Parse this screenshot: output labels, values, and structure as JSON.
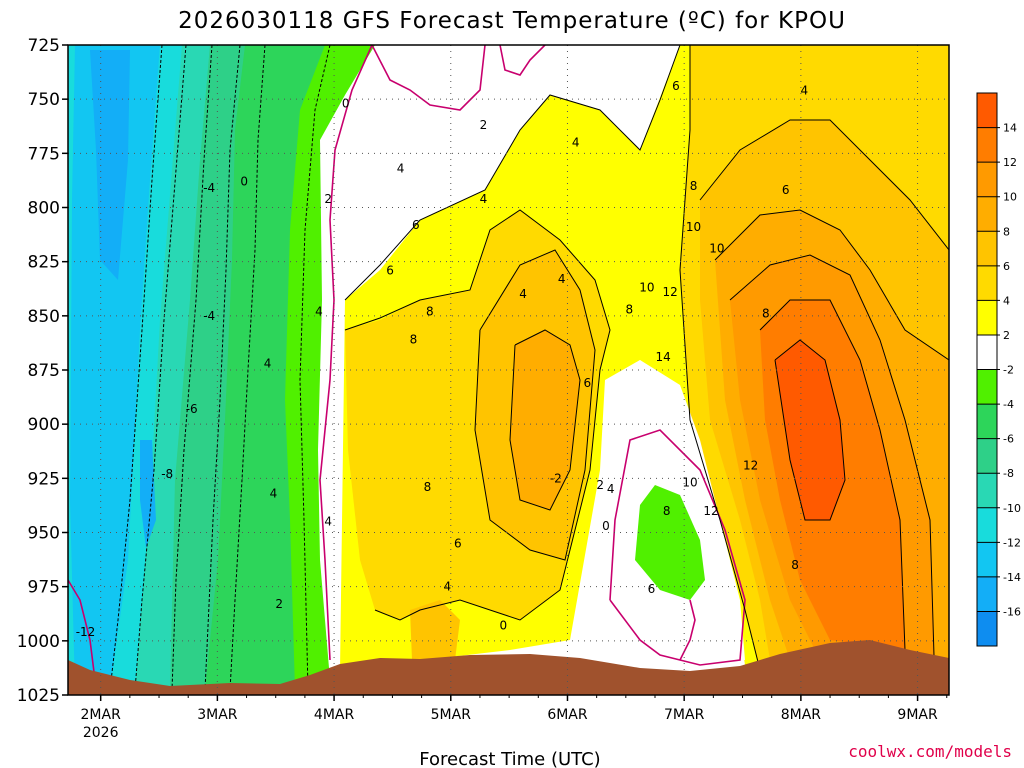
{
  "chart_data": {
    "type": "heatmap",
    "title": "2026030118 GFS Forecast Temperature (ºC) for KPOU",
    "xlabel": "Forecast Time (UTC)",
    "ylabel": "",
    "credit": "coolwx.com/models",
    "y_ticks": [
      "725",
      "750",
      "775",
      "800",
      "825",
      "850",
      "875",
      "900",
      "925",
      "950",
      "975",
      "1000",
      "1025"
    ],
    "x_ticks": [
      {
        "label": "2MAR",
        "sub": "2026"
      },
      {
        "label": "3MAR",
        "sub": ""
      },
      {
        "label": "4MAR",
        "sub": ""
      },
      {
        "label": "5MAR",
        "sub": ""
      },
      {
        "label": "6MAR",
        "sub": ""
      },
      {
        "label": "7MAR",
        "sub": ""
      },
      {
        "label": "8MAR",
        "sub": ""
      },
      {
        "label": "9MAR",
        "sub": ""
      }
    ],
    "ylim": [
      725,
      1025
    ],
    "colorbar": {
      "labels": [
        "14",
        "12",
        "10",
        "8",
        "6",
        "4",
        "2",
        "-2",
        "-4",
        "-6",
        "-8",
        "-10",
        "-12",
        "-14",
        "-16"
      ],
      "colors": [
        "#ff5a00",
        "#ff7d00",
        "#ff9a00",
        "#ffad00",
        "#ffc400",
        "#ffda00",
        "#ffff00",
        "#ffffff",
        "#50f000",
        "#2dd55a",
        "#2ed088",
        "#29d8b4",
        "#18dcdc",
        "#12c6f2",
        "#13aef7",
        "#0e8df0"
      ]
    },
    "contour_labels": [
      {
        "text": "0",
        "day": 3.23,
        "p": 788
      },
      {
        "text": "-4",
        "day": 2.93,
        "p": 791
      },
      {
        "text": "-4",
        "day": 2.93,
        "p": 850
      },
      {
        "text": "-6",
        "day": 2.78,
        "p": 893
      },
      {
        "text": "-8",
        "day": 2.57,
        "p": 923
      },
      {
        "text": "-12",
        "day": 1.87,
        "p": 996
      },
      {
        "text": "0",
        "day": 4.1,
        "p": 752
      },
      {
        "text": "2",
        "day": 3.95,
        "p": 796
      },
      {
        "text": "4",
        "day": 3.87,
        "p": 848
      },
      {
        "text": "4",
        "day": 3.43,
        "p": 872
      },
      {
        "text": "4",
        "day": 3.48,
        "p": 932
      },
      {
        "text": "2",
        "day": 3.53,
        "p": 983
      },
      {
        "text": "4",
        "day": 3.95,
        "p": 945
      },
      {
        "text": "4",
        "day": 4.57,
        "p": 782
      },
      {
        "text": "6",
        "day": 4.48,
        "p": 829
      },
      {
        "text": "6",
        "day": 4.7,
        "p": 808
      },
      {
        "text": "8",
        "day": 4.68,
        "p": 861
      },
      {
        "text": "8",
        "day": 4.82,
        "p": 848
      },
      {
        "text": "8",
        "day": 4.8,
        "p": 929
      },
      {
        "text": "6",
        "day": 5.06,
        "p": 955
      },
      {
        "text": "4",
        "day": 4.97,
        "p": 975
      },
      {
        "text": "2",
        "day": 5.28,
        "p": 762
      },
      {
        "text": "4",
        "day": 5.28,
        "p": 796
      },
      {
        "text": "4",
        "day": 5.62,
        "p": 840
      },
      {
        "text": "4",
        "day": 5.95,
        "p": 833
      },
      {
        "text": "-2",
        "day": 5.9,
        "p": 925
      },
      {
        "text": "0",
        "day": 5.45,
        "p": 993
      },
      {
        "text": "2",
        "day": 6.28,
        "p": 928
      },
      {
        "text": "4",
        "day": 6.37,
        "p": 930
      },
      {
        "text": "0",
        "day": 6.33,
        "p": 947
      },
      {
        "text": "6",
        "day": 6.17,
        "p": 881
      },
      {
        "text": "4",
        "day": 6.07,
        "p": 770
      },
      {
        "text": "6",
        "day": 6.93,
        "p": 744
      },
      {
        "text": "8",
        "day": 6.53,
        "p": 847
      },
      {
        "text": "10",
        "day": 6.68,
        "p": 837
      },
      {
        "text": "12",
        "day": 6.88,
        "p": 839
      },
      {
        "text": "14",
        "day": 6.82,
        "p": 869
      },
      {
        "text": "10",
        "day": 7.08,
        "p": 809
      },
      {
        "text": "8",
        "day": 7.08,
        "p": 790
      },
      {
        "text": "10",
        "day": 7.28,
        "p": 819
      },
      {
        "text": "6",
        "day": 7.87,
        "p": 792
      },
      {
        "text": "4",
        "day": 8.03,
        "p": 746
      },
      {
        "text": "8",
        "day": 7.7,
        "p": 849
      },
      {
        "text": "12",
        "day": 7.57,
        "p": 919
      },
      {
        "text": "10",
        "day": 7.05,
        "p": 927
      },
      {
        "text": "12",
        "day": 7.23,
        "p": 940
      },
      {
        "text": "8",
        "day": 6.85,
        "p": 940
      },
      {
        "text": "6",
        "day": 6.72,
        "p": 976
      },
      {
        "text": "8",
        "day": 7.95,
        "p": 965
      }
    ]
  }
}
